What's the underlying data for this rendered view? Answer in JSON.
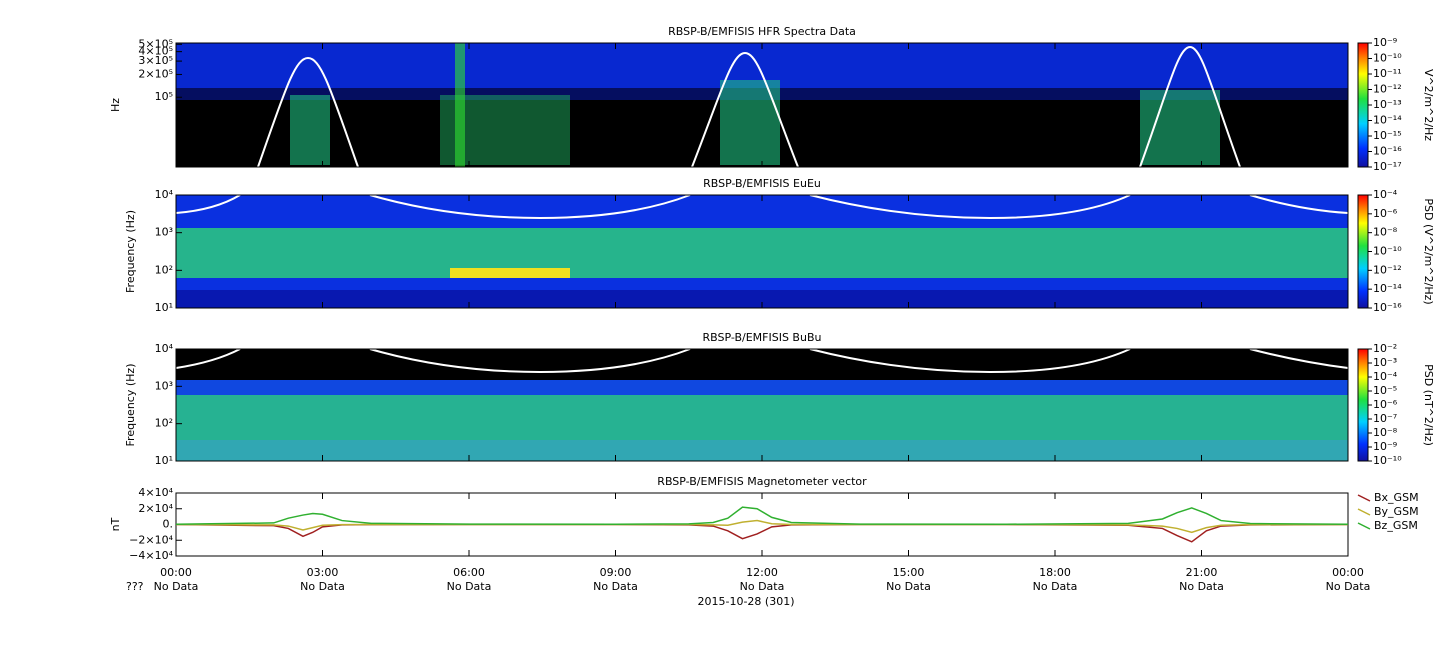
{
  "chart_data": [
    {
      "type": "spectrogram",
      "title": "RBSP-B/EMFISIS  HFR Spectra Data",
      "ylabel": "Hz",
      "log_y": true,
      "ylim": [
        12000,
        520000
      ],
      "yticks": [
        {
          "value": 500000,
          "label": "5×10⁵"
        },
        {
          "value": 400000,
          "label": "4×10⁵"
        },
        {
          "value": 300000,
          "label": "3×10⁵"
        },
        {
          "value": 200000,
          "label": "2×10⁵"
        },
        {
          "value": 100000,
          "label": "10⁵"
        }
      ],
      "xlim": [
        0,
        24
      ],
      "xticks": [
        0,
        3,
        6,
        9,
        12,
        15,
        18,
        21,
        24
      ],
      "zlabel": "V^2/m^2/Hz",
      "zlim": [
        1e-17,
        1e-09
      ],
      "zticks": [
        {
          "value": 1e-09,
          "label": "10⁻⁹"
        },
        {
          "value": 1e-10,
          "label": "10⁻¹⁰"
        },
        {
          "value": 1e-11,
          "label": "10⁻¹¹"
        },
        {
          "value": 1e-12,
          "label": "10⁻¹²"
        },
        {
          "value": 1e-13,
          "label": "10⁻¹³"
        },
        {
          "value": 1e-14,
          "label": "10⁻¹⁴"
        },
        {
          "value": 1e-15,
          "label": "10⁻¹⁵"
        },
        {
          "value": 1e-16,
          "label": "10⁻¹⁶"
        },
        {
          "value": 1e-17,
          "label": "10⁻¹⁷"
        }
      ]
    },
    {
      "type": "spectrogram",
      "title": "RBSP-B/EMFISIS  EuEu",
      "ylabel": "Frequency (Hz)",
      "log_y": true,
      "ylim": [
        10,
        10000
      ],
      "yticks": [
        {
          "value": 10000,
          "label": "10⁴"
        },
        {
          "value": 1000,
          "label": "10³"
        },
        {
          "value": 100,
          "label": "10²"
        },
        {
          "value": 10,
          "label": "10¹"
        }
      ],
      "xlim": [
        0,
        24
      ],
      "xticks": [
        0,
        3,
        6,
        9,
        12,
        15,
        18,
        21,
        24
      ],
      "zlabel": "PSD (V^2/m^2/Hz)",
      "zlim": [
        1e-16,
        0.0001
      ],
      "zticks": [
        {
          "value": 0.0001,
          "label": "10⁻⁴"
        },
        {
          "value": 1e-06,
          "label": "10⁻⁶"
        },
        {
          "value": 1e-08,
          "label": "10⁻⁸"
        },
        {
          "value": 1e-10,
          "label": "10⁻¹⁰"
        },
        {
          "value": 1e-12,
          "label": "10⁻¹²"
        },
        {
          "value": 1e-14,
          "label": "10⁻¹⁴"
        },
        {
          "value": 1e-16,
          "label": "10⁻¹⁶"
        }
      ]
    },
    {
      "type": "spectrogram",
      "title": "RBSP-B/EMFISIS  BuBu",
      "ylabel": "Frequency (Hz)",
      "log_y": true,
      "ylim": [
        10,
        10000
      ],
      "yticks": [
        {
          "value": 10000,
          "label": "10⁴"
        },
        {
          "value": 1000,
          "label": "10³"
        },
        {
          "value": 100,
          "label": "10²"
        },
        {
          "value": 10,
          "label": "10¹"
        }
      ],
      "xlim": [
        0,
        24
      ],
      "xticks": [
        0,
        3,
        6,
        9,
        12,
        15,
        18,
        21,
        24
      ],
      "zlabel": "PSD (nT^2/Hz)",
      "zlim": [
        1e-10,
        0.01
      ],
      "zticks": [
        {
          "value": 0.01,
          "label": "10⁻²"
        },
        {
          "value": 0.001,
          "label": "10⁻³"
        },
        {
          "value": 0.0001,
          "label": "10⁻⁴"
        },
        {
          "value": 1e-05,
          "label": "10⁻⁵"
        },
        {
          "value": 1e-06,
          "label": "10⁻⁶"
        },
        {
          "value": 1e-07,
          "label": "10⁻⁷"
        },
        {
          "value": 1e-08,
          "label": "10⁻⁸"
        },
        {
          "value": 1e-09,
          "label": "10⁻⁹"
        },
        {
          "value": 1e-10,
          "label": "10⁻¹⁰"
        }
      ]
    },
    {
      "type": "line",
      "title": "RBSP-B/EMFISIS  Magnetometer vector",
      "ylabel": "nT",
      "ylim": [
        -40000,
        40000
      ],
      "yticks": [
        {
          "value": 40000,
          "label": "4×10⁴"
        },
        {
          "value": 20000,
          "label": "2×10⁴"
        },
        {
          "value": 0,
          "label": "0."
        },
        {
          "value": -20000,
          "label": "−2×10⁴"
        },
        {
          "value": -40000,
          "label": "−4×10⁴"
        }
      ],
      "xlim": [
        0,
        24
      ],
      "xticks": [
        {
          "value": 0,
          "label": "00:00"
        },
        {
          "value": 3,
          "label": "03:00"
        },
        {
          "value": 6,
          "label": "06:00"
        },
        {
          "value": 9,
          "label": "09:00"
        },
        {
          "value": 12,
          "label": "12:00"
        },
        {
          "value": 15,
          "label": "15:00"
        },
        {
          "value": 18,
          "label": "18:00"
        },
        {
          "value": 21,
          "label": "21:00"
        },
        {
          "value": 24,
          "label": "00:00"
        }
      ],
      "xtick_sublabels": [
        "No Data",
        "No Data",
        "No Data",
        "No Data",
        "No Data",
        "No Data",
        "No Data",
        "No Data",
        "No Data"
      ],
      "xtick_prefix": "???",
      "xlabel": "2015-10-28 (301)",
      "x": [
        0,
        2,
        2.3,
        2.6,
        2.8,
        3.0,
        3.4,
        4,
        6,
        9,
        10.5,
        11,
        11.3,
        11.6,
        11.9,
        12.2,
        12.6,
        14,
        17,
        19.5,
        20.2,
        20.5,
        20.8,
        21.1,
        21.4,
        22,
        24
      ],
      "series": [
        {
          "name": "Bx_GSM",
          "color": "#a02020",
          "values": [
            0,
            -1500,
            -5000,
            -15000,
            -10000,
            -3000,
            -500,
            -200,
            0,
            0,
            -500,
            -2000,
            -8000,
            -18000,
            -12000,
            -3000,
            -500,
            0,
            0,
            -1000,
            -5000,
            -14000,
            -22000,
            -8000,
            -2000,
            -500,
            0
          ]
        },
        {
          "name": "By_GSM",
          "color": "#c0b030",
          "values": [
            0,
            -500,
            -2000,
            -7000,
            -4000,
            -1000,
            -200,
            0,
            0,
            0,
            0,
            -500,
            -1000,
            3000,
            5000,
            1000,
            0,
            0,
            0,
            -500,
            -2000,
            -5000,
            -10000,
            -4000,
            -1000,
            -200,
            0
          ]
        },
        {
          "name": "Bz_GSM",
          "color": "#30b030",
          "values": [
            300,
            2000,
            8000,
            12000,
            14000,
            13000,
            5000,
            1500,
            500,
            300,
            800,
            2500,
            8000,
            22000,
            20000,
            9000,
            2500,
            500,
            300,
            1500,
            7000,
            15000,
            21000,
            14000,
            5000,
            1200,
            300
          ]
        }
      ]
    }
  ]
}
